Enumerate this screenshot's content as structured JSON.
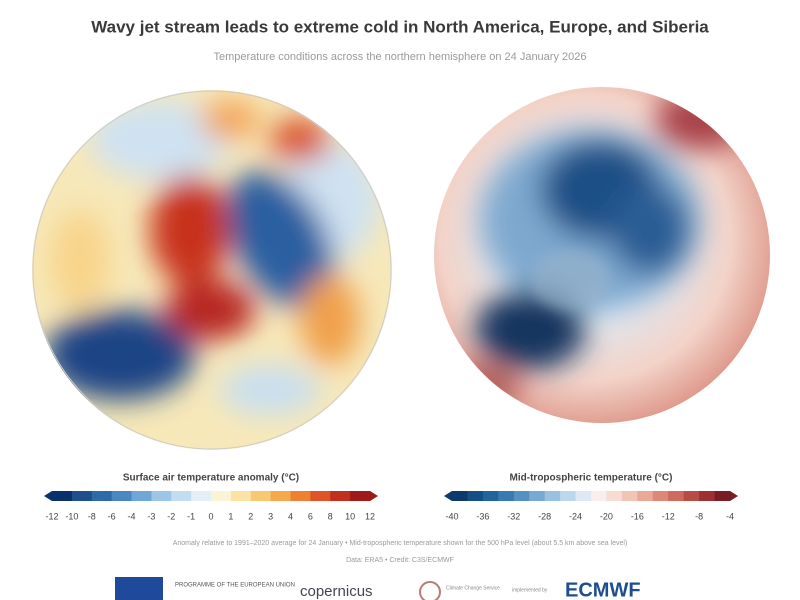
{
  "header": {
    "title": "Wavy jet stream leads to extreme cold in North America, Europe, and Siberia",
    "subtitle": "Temperature conditions across the northern hemisphere on 24 January 2026"
  },
  "legends": [
    {
      "title": "Surface air temperature anomaly (°C)",
      "ticks": [
        -12,
        -10,
        -8,
        -6,
        -4,
        -3,
        -2,
        -1,
        0,
        1,
        2,
        3,
        4,
        6,
        8,
        10,
        12
      ],
      "colors": [
        "#08306b",
        "#1f4e8c",
        "#2f6aa8",
        "#4a88c2",
        "#6fa7d6",
        "#9cc6e6",
        "#c3dcf0",
        "#e4eef7",
        "#fbf3d6",
        "#fbe3a4",
        "#f8c973",
        "#f5a84c",
        "#ee8034",
        "#de5426",
        "#c42e1f",
        "#9e1a1a"
      ]
    },
    {
      "title": "Mid-tropospheric temperature (°C)",
      "ticks": [
        -40,
        -36,
        -32,
        -28,
        -24,
        -20,
        -16,
        -12,
        -8,
        -4
      ],
      "colors": [
        "#0b3a6b",
        "#134f85",
        "#21649c",
        "#3779b0",
        "#5590c2",
        "#77a9d2",
        "#9ac1e0",
        "#bcd6ec",
        "#dde9f4",
        "#f8efec",
        "#f6dcd3",
        "#f1c4b6",
        "#eaa897",
        "#de8878",
        "#cf6a5e",
        "#b94b47",
        "#9c3033",
        "#7a1c25"
      ]
    }
  ],
  "notes": [
    "Anomaly relative to 1991–2020 average for 24 January • Mid-tropospheric temperature shown for the 500 hPa level (about 5.5 km above sea level)",
    "Data: ERA5 • Credit: C3S/ECMWF"
  ],
  "logos": {
    "eu": "PROGRAMME OF THE EUROPEAN UNION",
    "copernicus": "copernicus",
    "c3s": "Climate Change Service",
    "implemented": "implemented by",
    "ecmwf": "ECMWF"
  }
}
